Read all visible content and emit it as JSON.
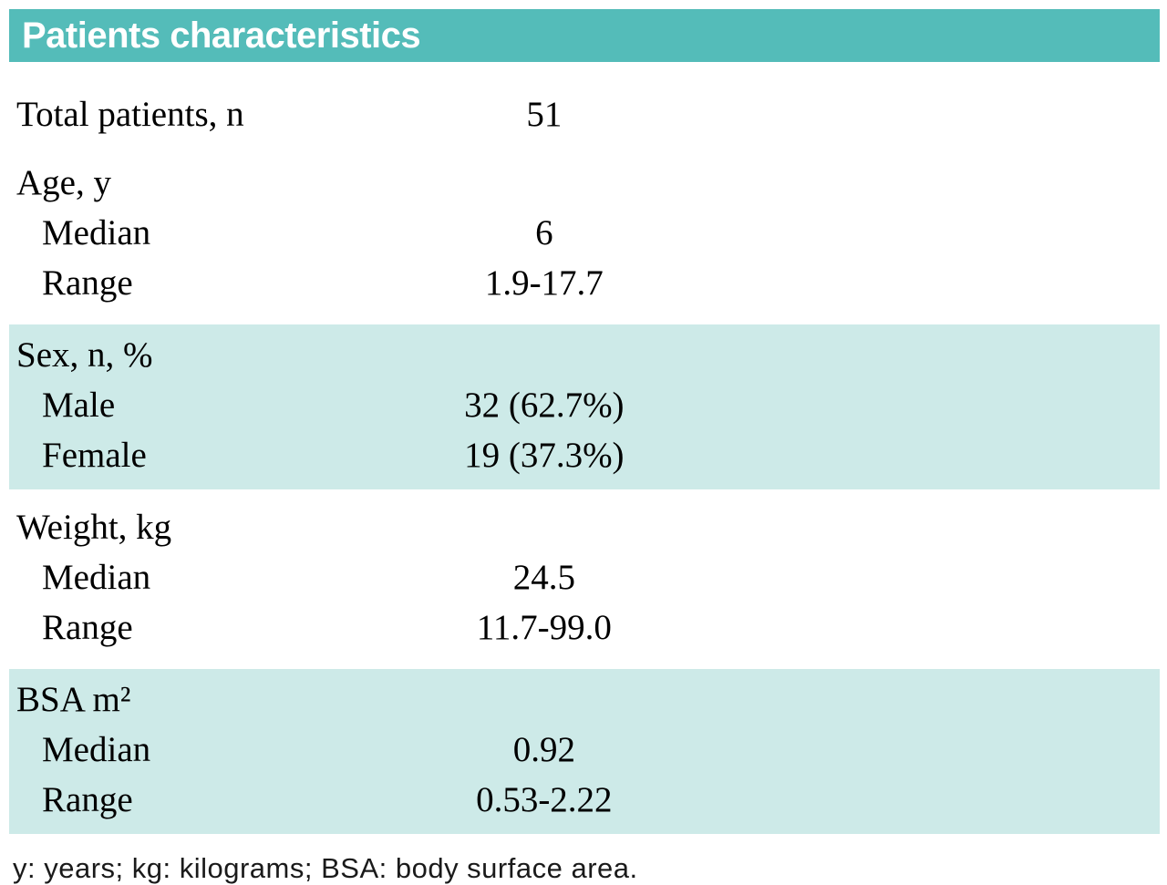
{
  "colors": {
    "header_bg": "#54bcb9",
    "shaded_bg": "#cdeae8"
  },
  "table": {
    "title": "Patients characteristics",
    "sections": [
      {
        "header": "",
        "shaded": false,
        "rows": [
          {
            "label": "Total patients, n",
            "value": "51"
          }
        ]
      },
      {
        "header": "Age, y",
        "shaded": false,
        "rows": [
          {
            "label": "Median",
            "value": "6"
          },
          {
            "label": "Range",
            "value": "1.9-17.7"
          }
        ]
      },
      {
        "header": "Sex, n, %",
        "shaded": true,
        "rows": [
          {
            "label": "Male",
            "value": "32 (62.7%)"
          },
          {
            "label": "Female",
            "value": "19 (37.3%)"
          }
        ]
      },
      {
        "header": "Weight, kg",
        "shaded": false,
        "rows": [
          {
            "label": "Median",
            "value": "24.5"
          },
          {
            "label": "Range",
            "value": "11.7-99.0"
          }
        ]
      },
      {
        "header": "BSA m²",
        "shaded": true,
        "rows": [
          {
            "label": "Median",
            "value": "0.92"
          },
          {
            "label": "Range",
            "value": "0.53-2.22"
          }
        ]
      }
    ],
    "footnote": "y: years; kg: kilograms; BSA: body surface area."
  }
}
